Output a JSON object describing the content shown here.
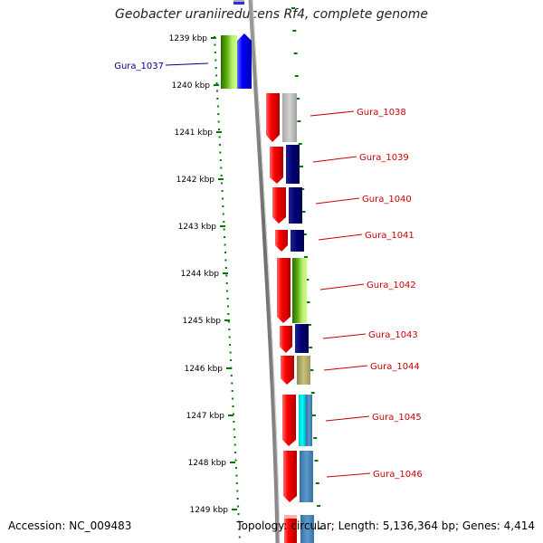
{
  "title": "Geobacter uraniireducens Rf4, complete genome",
  "footer": {
    "accession": "Accession: NC_009483",
    "topology": "Topology: circular; Length: 5,136,364 bp; Genes: 4,414"
  },
  "ticks": [
    "1239 kbp",
    "1240 kbp",
    "1241 kbp",
    "1242 kbp",
    "1243 kbp",
    "1244 kbp",
    "1245 kbp",
    "1246 kbp",
    "1247 kbp",
    "1248 kbp",
    "1249 kbp"
  ],
  "colors": {
    "forward_strand": "#0000ff",
    "reverse_strand": "#ff0000",
    "backbone": "#808080",
    "ruler": "#007a00",
    "left_label": "#00008b",
    "right_label": "#cc0000"
  },
  "genes": [
    {
      "label": "Gura_1037",
      "strand": "forward",
      "side": "left",
      "cog_color": "#0000ff"
    },
    {
      "label": "Gura_1038",
      "strand": "reverse",
      "side": "right",
      "cog_color": "#c0c0c0"
    },
    {
      "label": "Gura_1039",
      "strand": "reverse",
      "side": "right",
      "cog_color": "#000080"
    },
    {
      "label": "Gura_1040",
      "strand": "reverse",
      "side": "right",
      "cog_color": "#000080"
    },
    {
      "label": "Gura_1041",
      "strand": "reverse",
      "side": "right",
      "cog_color": "#000080"
    },
    {
      "label": "Gura_1042",
      "strand": "reverse",
      "side": "right",
      "cog_color": "#7fbf00"
    },
    {
      "label": "Gura_1043",
      "strand": "reverse",
      "side": "right",
      "cog_color": "#000080"
    },
    {
      "label": "Gura_1044",
      "strand": "reverse",
      "side": "right",
      "cog_color": "#bdb76b"
    },
    {
      "label": "Gura_1045",
      "strand": "reverse",
      "side": "right",
      "cog_color": "#00ffff"
    },
    {
      "label": "Gura_1046",
      "strand": "reverse",
      "side": "right",
      "cog_color": "#4682b4"
    }
  ]
}
